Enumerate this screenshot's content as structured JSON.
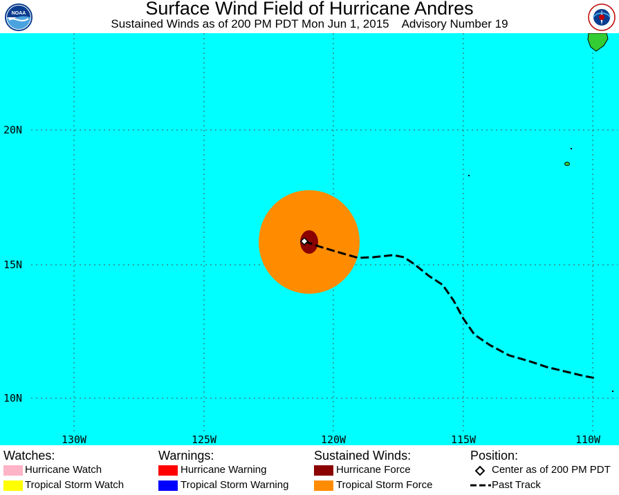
{
  "header": {
    "title": "Surface Wind Field of Hurricane Andres",
    "subtitle": "Sustained Winds as of 200 PM PDT Mon Jun 1, 2015    Advisory Number 19",
    "left_logo": "NOAA",
    "right_logo": "NATIONAL WEATHER SERVICE"
  },
  "map": {
    "ocean_color": "#00ffff",
    "land_color": "#33cc33",
    "lat_labels": [
      "20N",
      "15N",
      "10N"
    ],
    "lon_labels": [
      "130W",
      "125W",
      "120W",
      "115W",
      "110W"
    ],
    "storm_center": {
      "lat": 15.9,
      "lon": 121.0
    },
    "past_track": [
      {
        "lat": 15.9,
        "lon": 121.0
      },
      {
        "lat": 15.6,
        "lon": 120.2
      },
      {
        "lat": 15.3,
        "lon": 119.0
      },
      {
        "lat": 15.4,
        "lon": 117.5
      },
      {
        "lat": 14.9,
        "lon": 116.3
      },
      {
        "lat": 14.3,
        "lon": 115.3
      },
      {
        "lat": 12.6,
        "lon": 114.3
      },
      {
        "lat": 11.7,
        "lon": 113.1
      },
      {
        "lat": 11.3,
        "lon": 111.5
      },
      {
        "lat": 10.8,
        "lon": 110.0
      }
    ]
  },
  "legend": {
    "watches": {
      "heading": "Watches:",
      "items": [
        {
          "label": "Hurricane Watch",
          "color": "#ffb3c6"
        },
        {
          "label": "Tropical Storm Watch",
          "color": "#ffff00"
        }
      ]
    },
    "warnings": {
      "heading": "Warnings:",
      "items": [
        {
          "label": "Hurricane Warning",
          "color": "#ff0000"
        },
        {
          "label": "Tropical Storm Warning",
          "color": "#0000ff"
        }
      ]
    },
    "winds": {
      "heading": "Sustained Winds:",
      "items": [
        {
          "label": "Hurricane Force",
          "color": "#8b0000"
        },
        {
          "label": "Tropical Storm Force",
          "color": "#ff8c00"
        }
      ]
    },
    "position": {
      "heading": "Position:",
      "center_label": "Center as of 200 PM PDT",
      "track_label": "Past Track"
    }
  }
}
